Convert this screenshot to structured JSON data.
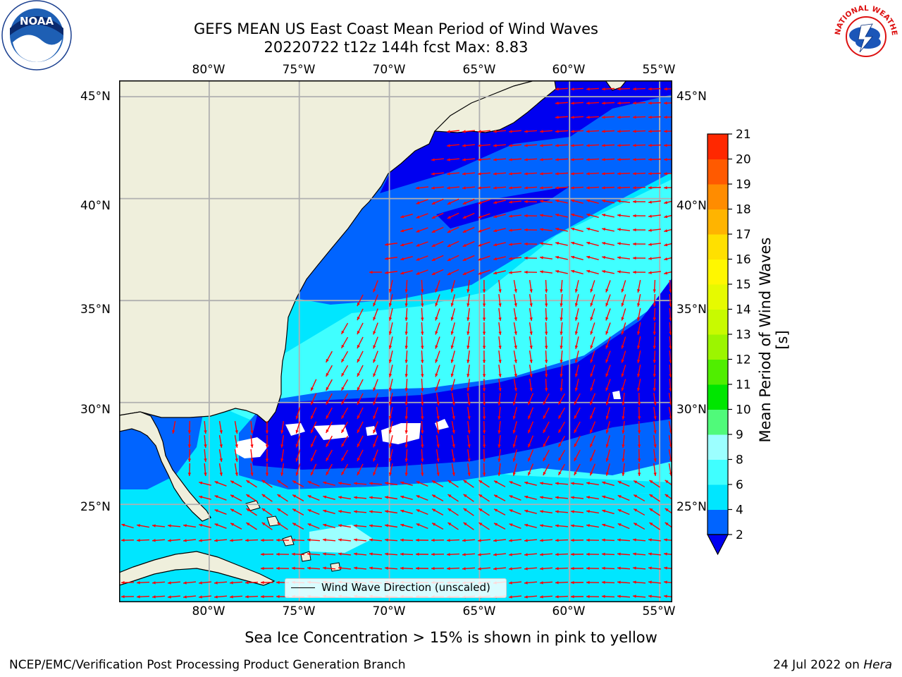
{
  "header": {
    "title": "GEFS MEAN US East Coast Mean Period of Wind Waves",
    "subtitle": "20220722 t12z 144h fcst   Max: 8.83"
  },
  "logos": {
    "left": "NOAA",
    "right": "NATIONAL WEATHER SERVICE"
  },
  "map": {
    "lon_range": [
      -85,
      -54.3
    ],
    "lat_range": [
      20.2,
      45.8
    ],
    "lon_ticks": [
      -80,
      -75,
      -70,
      -65,
      -60,
      -55
    ],
    "lat_ticks": [
      25,
      30,
      35,
      40,
      45
    ],
    "lon_labels": [
      "80°W",
      "75°W",
      "70°W",
      "65°W",
      "60°W",
      "55°W"
    ],
    "lat_labels": [
      "25°N",
      "30°N",
      "35°N",
      "40°N",
      "45°N"
    ],
    "land_color": "#efefdc",
    "arrow_color": "#ff0000",
    "grid_color": "#b0b0b0",
    "legend": {
      "label": "Wind Wave Direction (unscaled)"
    }
  },
  "colorbar": {
    "label": "Mean Period of Wind Waves [s]",
    "ticks": [
      "2",
      "4",
      "6",
      "8",
      "9",
      "10",
      "11",
      "12",
      "13",
      "14",
      "15",
      "16",
      "17",
      "18",
      "19",
      "20",
      "21"
    ],
    "colors": [
      "#0064ff",
      "#00e6ff",
      "#40ffff",
      "#9cffff",
      "#50fa7a",
      "#00e600",
      "#50ee00",
      "#9cf500",
      "#c8fa00",
      "#e6fa00",
      "#fff700",
      "#ffe000",
      "#ffb400",
      "#ff8c00",
      "#ff5a00",
      "#ff2800"
    ],
    "extend_color": "#0000f0"
  },
  "wave_colors": {
    "band_0_2": "#0000f0",
    "band_2_4": "#0064ff",
    "band_4_6": "#00e6ff",
    "band_6_8": "#40ffff",
    "band_8_9": "#9cffff"
  },
  "notes": {
    "sea_ice": "Sea Ice Concentration > 15% is shown in pink to yellow"
  },
  "footer": {
    "left": "NCEP/EMC/Verification Post Processing Product Generation Branch",
    "date": "24 Jul 2022 on ",
    "machine": "Hera"
  }
}
